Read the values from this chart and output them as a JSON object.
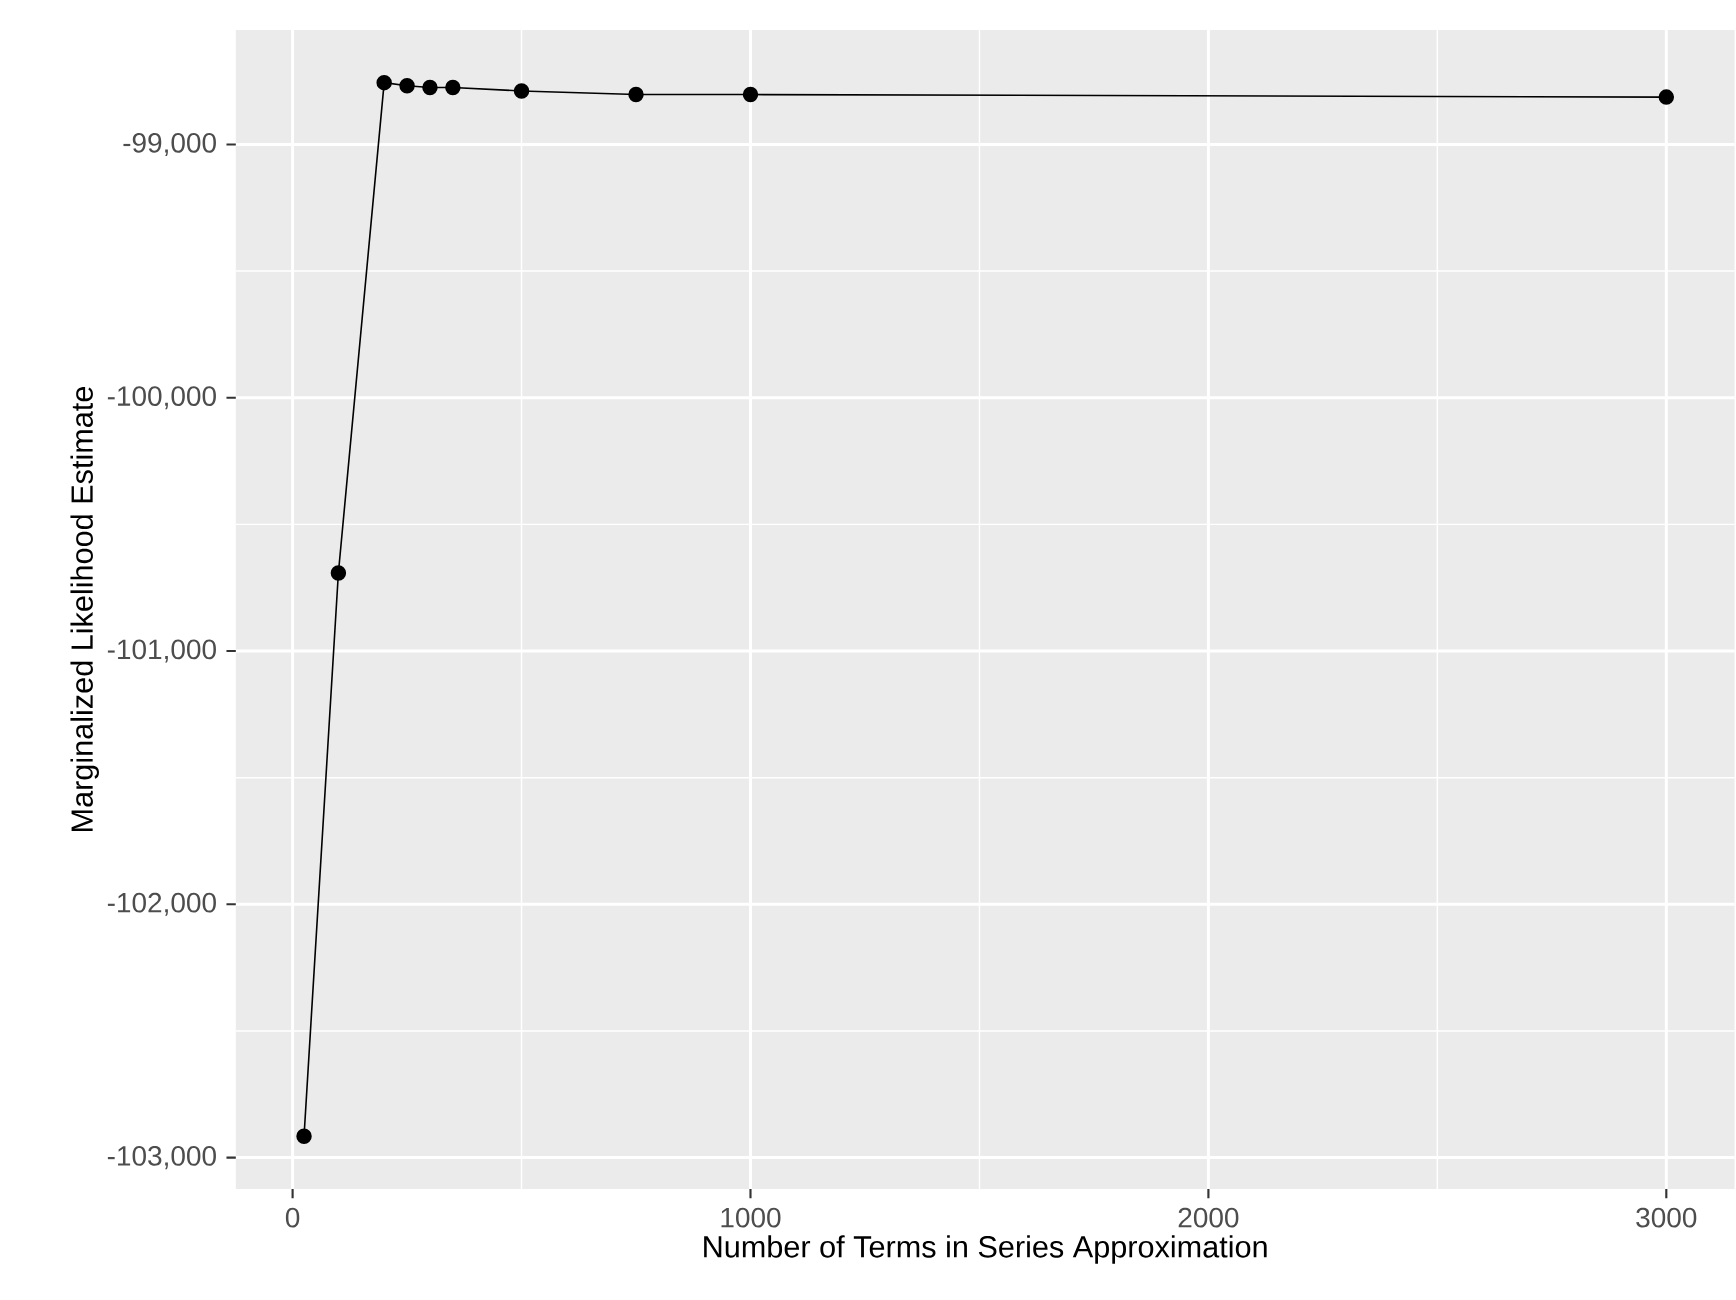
{
  "chart_data": {
    "type": "line",
    "xlabel": "Number of Terms in Series Approximation",
    "ylabel": "Marginalized Likelihood Estimate",
    "x": [
      25,
      100,
      200,
      250,
      300,
      350,
      500,
      750,
      1000,
      3000
    ],
    "series": [
      {
        "color": "#000000",
        "values": [
          -102916,
          -100692,
          -98756,
          -98768,
          -98775,
          -98775,
          -98789,
          -98803,
          -98803,
          -98813
        ]
      }
    ],
    "xlim": [
      -124,
      3149
    ],
    "ylim": [
      -103124,
      -98548
    ],
    "xticks": [
      0,
      1000,
      2000,
      3000
    ],
    "yticks": [
      {
        "value": -103000,
        "label": "-103,000"
      },
      {
        "value": -102000,
        "label": "-102,000"
      },
      {
        "value": -101000,
        "label": "-101,000"
      },
      {
        "value": -100000,
        "label": "-100,000"
      },
      {
        "value": -99000,
        "label": "-99,000"
      }
    ],
    "grid": true,
    "marker": "circle",
    "line_style": "solid"
  }
}
